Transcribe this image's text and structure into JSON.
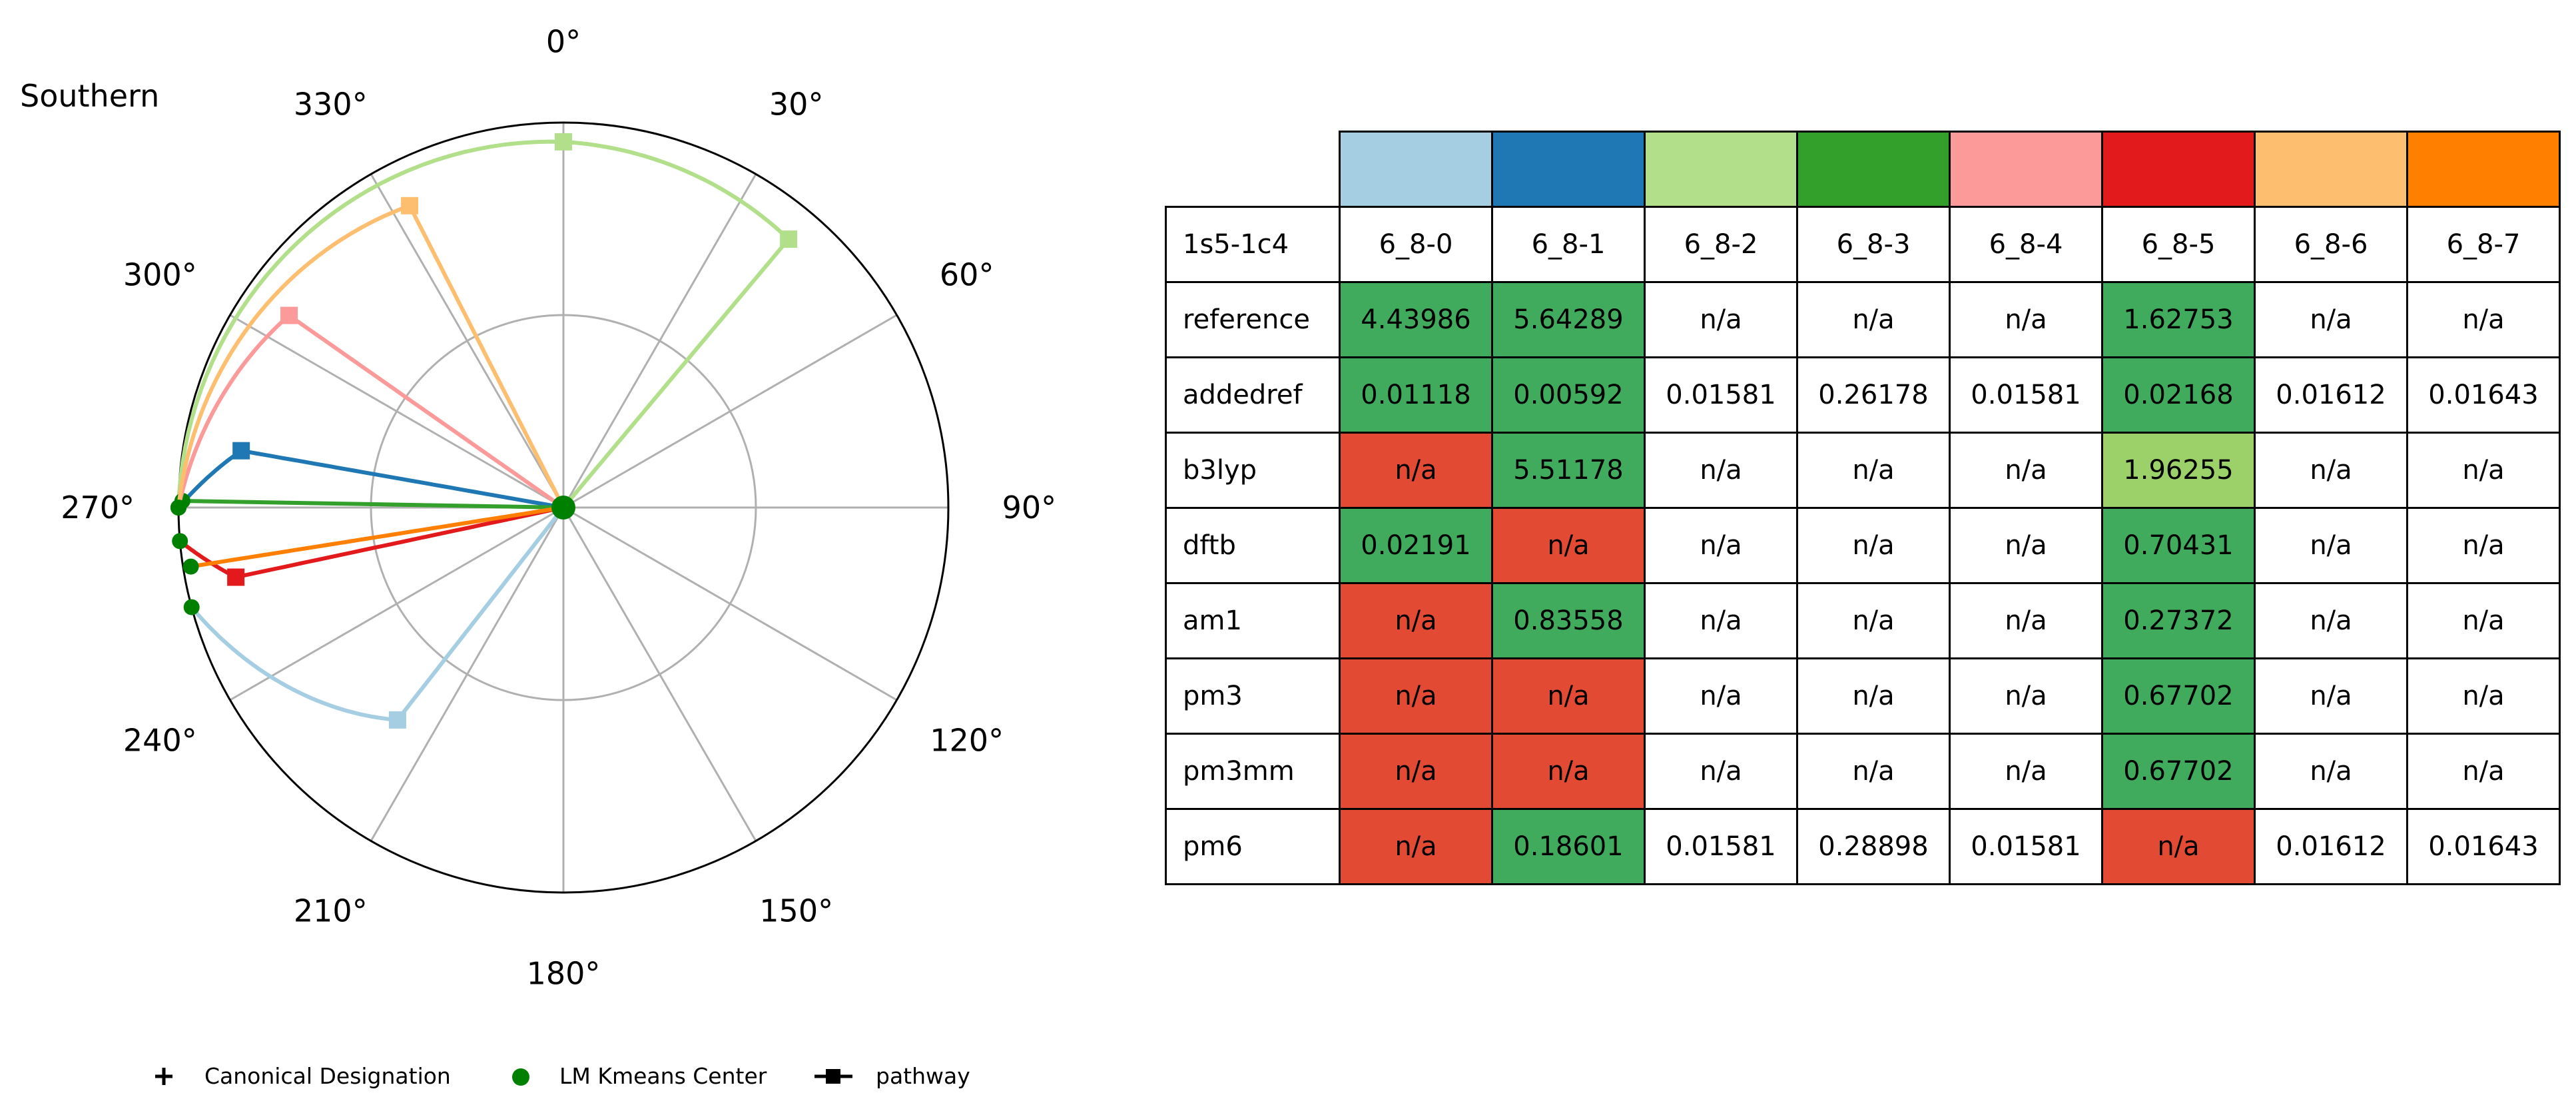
{
  "chart_data": [
    {
      "type": "polar",
      "title": "Southern",
      "theta_zero": "top",
      "theta_direction": "clockwise",
      "theta_ticks": [
        "0°",
        "30°",
        "60°",
        "90°",
        "120°",
        "150°",
        "180°",
        "210°",
        "240°",
        "270°",
        "300°",
        "330°"
      ],
      "rlim": [
        0,
        1
      ],
      "grid": true,
      "center_point": {
        "name": "LM Kmeans Center",
        "theta": 0,
        "r": 0,
        "color": "#008000"
      },
      "series": [
        {
          "color": "#a6cee3",
          "points": [
            {
              "theta": 0,
              "r": 0
            },
            {
              "theta": 218,
              "r": 0.7
            },
            {
              "theta": 255,
              "r": 1.0
            }
          ]
        },
        {
          "color": "#1f78b4",
          "points": [
            {
              "theta": 0,
              "r": 0
            },
            {
              "theta": 280,
              "r": 0.85
            },
            {
              "theta": 270,
              "r": 1.0
            }
          ]
        },
        {
          "color": "#b2df8a",
          "points": [
            {
              "theta": 0,
              "r": 0
            },
            {
              "theta": 40,
              "r": 0.91
            },
            {
              "theta": 0,
              "r": 0.95
            },
            {
              "theta": 270,
              "r": 1.0
            }
          ]
        },
        {
          "color": "#33a02c",
          "points": [
            {
              "theta": 0,
              "r": 0
            },
            {
              "theta": 271,
              "r": 0.99
            }
          ]
        },
        {
          "color": "#fb9a99",
          "points": [
            {
              "theta": 0,
              "r": 0
            },
            {
              "theta": 305,
              "r": 0.87
            },
            {
              "theta": 270,
              "r": 1.0
            }
          ]
        },
        {
          "color": "#e31a1c",
          "points": [
            {
              "theta": 0,
              "r": 0
            },
            {
              "theta": 258,
              "r": 0.87
            },
            {
              "theta": 265,
              "r": 1.0
            }
          ]
        },
        {
          "color": "#fdbf6f",
          "points": [
            {
              "theta": 0,
              "r": 0
            },
            {
              "theta": 333,
              "r": 0.88
            },
            {
              "theta": 270,
              "r": 1.0
            }
          ]
        },
        {
          "color": "#ff7f00",
          "points": [
            {
              "theta": 0,
              "r": 0
            },
            {
              "theta": 261,
              "r": 0.98
            }
          ]
        }
      ],
      "legend": {
        "placement": "bottom",
        "entries": [
          {
            "label": "Canonical Designation",
            "marker": "plus"
          },
          {
            "label": "LM Kmeans Center",
            "marker": "circle"
          },
          {
            "label": "pathway",
            "marker": "line-square"
          }
        ]
      }
    },
    {
      "type": "table",
      "corner_label": "1s5-1c4",
      "columns": [
        "6_8-0",
        "6_8-1",
        "6_8-2",
        "6_8-3",
        "6_8-4",
        "6_8-5",
        "6_8-6",
        "6_8-7"
      ],
      "column_colors": [
        "#a6cee3",
        "#1f78b4",
        "#b2df8a",
        "#33a02c",
        "#fb9a99",
        "#e31a1c",
        "#fdbf6f",
        "#ff7f00"
      ],
      "rows": [
        {
          "label": "reference",
          "values": [
            "4.43986",
            "5.64289",
            "n/a",
            "n/a",
            "n/a",
            "1.62753",
            "n/a",
            "n/a"
          ],
          "colors": [
            "#41ab5d",
            "#41ab5d",
            "",
            "",
            "",
            "#41ab5d",
            "",
            ""
          ]
        },
        {
          "label": "addedref",
          "values": [
            "0.01118",
            "0.00592",
            "0.01581",
            "0.26178",
            "0.01581",
            "0.02168",
            "0.01612",
            "0.01643"
          ],
          "colors": [
            "#41ab5d",
            "#41ab5d",
            "",
            "",
            "",
            "#41ab5d",
            "",
            ""
          ]
        },
        {
          "label": "b3lyp",
          "values": [
            "n/a",
            "5.51178",
            "n/a",
            "n/a",
            "n/a",
            "1.96255",
            "n/a",
            "n/a"
          ],
          "colors": [
            "#e34a33",
            "#41ab5d",
            "",
            "",
            "",
            "#9cd16a",
            "",
            ""
          ]
        },
        {
          "label": "dftb",
          "values": [
            "0.02191",
            "n/a",
            "n/a",
            "n/a",
            "n/a",
            "0.70431",
            "n/a",
            "n/a"
          ],
          "colors": [
            "#41ab5d",
            "#e34a33",
            "",
            "",
            "",
            "#41ab5d",
            "",
            ""
          ]
        },
        {
          "label": "am1",
          "values": [
            "n/a",
            "0.83558",
            "n/a",
            "n/a",
            "n/a",
            "0.27372",
            "n/a",
            "n/a"
          ],
          "colors": [
            "#e34a33",
            "#41ab5d",
            "",
            "",
            "",
            "#41ab5d",
            "",
            ""
          ]
        },
        {
          "label": "pm3",
          "values": [
            "n/a",
            "n/a",
            "n/a",
            "n/a",
            "n/a",
            "0.67702",
            "n/a",
            "n/a"
          ],
          "colors": [
            "#e34a33",
            "#e34a33",
            "",
            "",
            "",
            "#41ab5d",
            "",
            ""
          ]
        },
        {
          "label": "pm3mm",
          "values": [
            "n/a",
            "n/a",
            "n/a",
            "n/a",
            "n/a",
            "0.67702",
            "n/a",
            "n/a"
          ],
          "colors": [
            "#e34a33",
            "#e34a33",
            "",
            "",
            "",
            "#41ab5d",
            "",
            ""
          ]
        },
        {
          "label": "pm6",
          "values": [
            "n/a",
            "0.18601",
            "0.01581",
            "0.28898",
            "0.01581",
            "n/a",
            "0.01612",
            "0.01643"
          ],
          "colors": [
            "#e34a33",
            "#41ab5d",
            "",
            "",
            "",
            "#e34a33",
            "",
            ""
          ]
        }
      ]
    }
  ]
}
